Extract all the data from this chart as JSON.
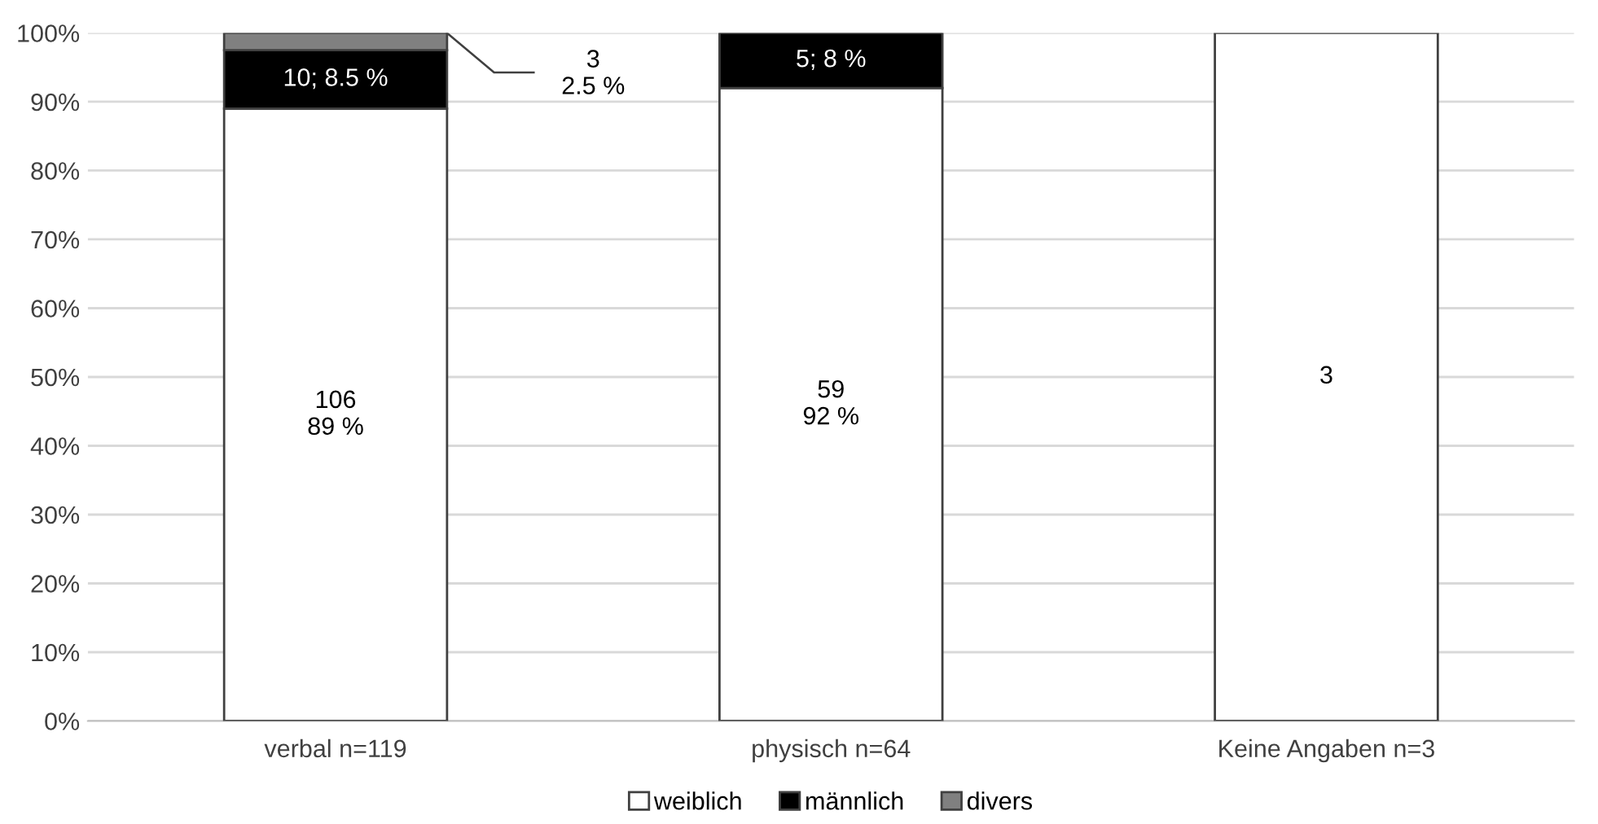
{
  "chart_data": {
    "type": "bar",
    "stacked": true,
    "categories": [
      "verbal n=119",
      "physisch n=64",
      "Keine Angaben n=3"
    ],
    "series": [
      {
        "name": "weiblich",
        "color": "#ffffff",
        "values": [
          89,
          92,
          100
        ],
        "value_labels": [
          "106\n89 %",
          "59\n92 %",
          null
        ]
      },
      {
        "name": "männlich",
        "color": "#000000",
        "values": [
          8.5,
          8,
          null
        ],
        "value_labels": [
          "10; 8.5 %",
          "5; 8 %",
          null
        ]
      },
      {
        "name": "divers",
        "color": "#808080",
        "values": [
          2.5,
          null,
          null
        ],
        "value_labels": [
          "3\n2.5 %",
          null,
          null
        ]
      }
    ],
    "ylim": [
      0,
      100
    ],
    "yticks": [
      {
        "value": 0,
        "label": "0%"
      },
      {
        "value": 10,
        "label": "10%"
      },
      {
        "value": 20,
        "label": "20%"
      },
      {
        "value": 30,
        "label": "30%"
      },
      {
        "value": 40,
        "label": "40%"
      },
      {
        "value": 50,
        "label": "50%"
      },
      {
        "value": 60,
        "label": "60%"
      },
      {
        "value": 70,
        "label": "70%"
      },
      {
        "value": 80,
        "label": "80%"
      },
      {
        "value": 90,
        "label": "90%"
      },
      {
        "value": 100,
        "label": "100%"
      }
    ],
    "annotations": [
      "3"
    ],
    "grid": "y",
    "legend": "bottom"
  }
}
